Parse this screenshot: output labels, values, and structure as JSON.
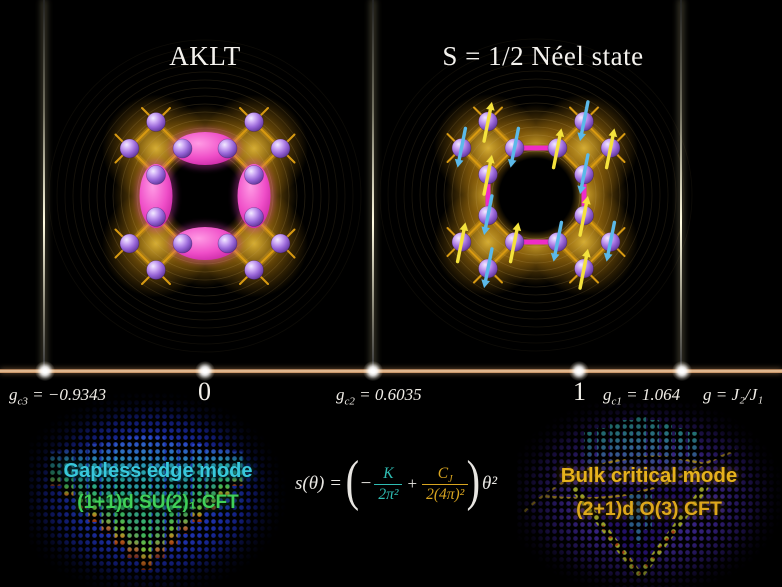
{
  "panels": {
    "left": {
      "title": "AKLT"
    },
    "right": {
      "title": "S = 1/2 Néel state"
    }
  },
  "axis": {
    "ticks": [
      {
        "sym": "g",
        "sub": "c3",
        "eq": " = −0.9343",
        "expr": ""
      },
      {
        "text": "0"
      },
      {
        "sym": "g",
        "sub": "c2",
        "eq": " = 0.6035",
        "expr": ""
      },
      {
        "text": "1"
      },
      {
        "sym": "g",
        "sub": "c1",
        "eq": " = 1.064",
        "expr": ""
      },
      {
        "sym": "g",
        "sub": "",
        "eq": " = ",
        "expr": "J₂/J₁"
      }
    ]
  },
  "equation": {
    "lhs": "s(θ) =",
    "open": "(",
    "minus": "−",
    "frac1": {
      "num": "K",
      "den": "2π²"
    },
    "plus": "+",
    "frac2": {
      "num_main": "C",
      "num_sub": "J",
      "den": "2(4π)²"
    },
    "close": ")",
    "tail": "θ²"
  },
  "spectra": {
    "left": {
      "line1": "Gapless edge mode",
      "line2": "(1+1)d SU(2)₁ CFT"
    },
    "right": {
      "line1": "Bulk critical mode",
      "line2": "(2+1)d O(3) CFT"
    }
  },
  "colors": {
    "background": "#000000",
    "axis_line": "#dca47a",
    "bond_gold": "#d89a12",
    "glow_amber": "#f2a612",
    "sphere_purple": "#9663d6",
    "singlet_magenta": "#ee2cc8",
    "arrow_up_yellow": "#f4e23c",
    "arrow_down_cyan": "#5bb9e9",
    "equation_teal": "#2fbdb3",
    "equation_gold": "#d9a520",
    "edge_mode_cyan": "#38c8dc",
    "su2_green": "#40d058",
    "bulk_gold": "#e6b21d",
    "spectrum_blue": "#2336c8",
    "spectrum_violet": "#34217c"
  }
}
